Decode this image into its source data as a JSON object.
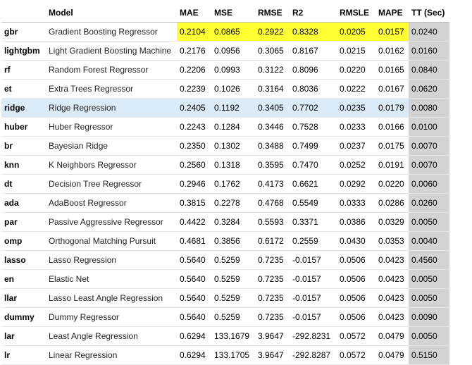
{
  "colors": {
    "best_highlight": "#ffff33",
    "row_highlight": "#dbeaf7",
    "tt_column": "#d3d3d3"
  },
  "columns": [
    "",
    "Model",
    "MAE",
    "MSE",
    "RMSE",
    "R2",
    "RMSLE",
    "MAPE",
    "TT (Sec)"
  ],
  "rows": [
    {
      "id": "gbr",
      "model": "Gradient Boosting Regressor",
      "mae": "0.2104",
      "mse": "0.0865",
      "rmse": "0.2922",
      "r2": "0.8328",
      "rmsle": "0.0205",
      "mape": "0.0157",
      "tt": "0.0240"
    },
    {
      "id": "lightgbm",
      "model": "Light Gradient Boosting Machine",
      "mae": "0.2176",
      "mse": "0.0956",
      "rmse": "0.3065",
      "r2": "0.8167",
      "rmsle": "0.0215",
      "mape": "0.0162",
      "tt": "0.0160"
    },
    {
      "id": "rf",
      "model": "Random Forest Regressor",
      "mae": "0.2206",
      "mse": "0.0993",
      "rmse": "0.3122",
      "r2": "0.8096",
      "rmsle": "0.0220",
      "mape": "0.0165",
      "tt": "0.0840"
    },
    {
      "id": "et",
      "model": "Extra Trees Regressor",
      "mae": "0.2239",
      "mse": "0.1026",
      "rmse": "0.3164",
      "r2": "0.8036",
      "rmsle": "0.0222",
      "mape": "0.0167",
      "tt": "0.0620"
    },
    {
      "id": "ridge",
      "model": "Ridge Regression",
      "mae": "0.2405",
      "mse": "0.1192",
      "rmse": "0.3405",
      "r2": "0.7702",
      "rmsle": "0.0235",
      "mape": "0.0179",
      "tt": "0.0080"
    },
    {
      "id": "huber",
      "model": "Huber Regressor",
      "mae": "0.2243",
      "mse": "0.1284",
      "rmse": "0.3446",
      "r2": "0.7528",
      "rmsle": "0.0233",
      "mape": "0.0166",
      "tt": "0.0100"
    },
    {
      "id": "br",
      "model": "Bayesian Ridge",
      "mae": "0.2350",
      "mse": "0.1302",
      "rmse": "0.3488",
      "r2": "0.7499",
      "rmsle": "0.0237",
      "mape": "0.0175",
      "tt": "0.0070"
    },
    {
      "id": "knn",
      "model": "K Neighbors Regressor",
      "mae": "0.2560",
      "mse": "0.1318",
      "rmse": "0.3595",
      "r2": "0.7470",
      "rmsle": "0.0252",
      "mape": "0.0191",
      "tt": "0.0070"
    },
    {
      "id": "dt",
      "model": "Decision Tree Regressor",
      "mae": "0.2946",
      "mse": "0.1762",
      "rmse": "0.4173",
      "r2": "0.6621",
      "rmsle": "0.0292",
      "mape": "0.0220",
      "tt": "0.0060"
    },
    {
      "id": "ada",
      "model": "AdaBoost Regressor",
      "mae": "0.3815",
      "mse": "0.2278",
      "rmse": "0.4768",
      "r2": "0.5549",
      "rmsle": "0.0333",
      "mape": "0.0286",
      "tt": "0.0260"
    },
    {
      "id": "par",
      "model": "Passive Aggressive Regressor",
      "mae": "0.4422",
      "mse": "0.3284",
      "rmse": "0.5593",
      "r2": "0.3371",
      "rmsle": "0.0386",
      "mape": "0.0329",
      "tt": "0.0050"
    },
    {
      "id": "omp",
      "model": "Orthogonal Matching Pursuit",
      "mae": "0.4681",
      "mse": "0.3856",
      "rmse": "0.6172",
      "r2": "0.2559",
      "rmsle": "0.0430",
      "mape": "0.0353",
      "tt": "0.0040"
    },
    {
      "id": "lasso",
      "model": "Lasso Regression",
      "mae": "0.5640",
      "mse": "0.5259",
      "rmse": "0.7235",
      "r2": "-0.0157",
      "rmsle": "0.0506",
      "mape": "0.0423",
      "tt": "0.4560"
    },
    {
      "id": "en",
      "model": "Elastic Net",
      "mae": "0.5640",
      "mse": "0.5259",
      "rmse": "0.7235",
      "r2": "-0.0157",
      "rmsle": "0.0506",
      "mape": "0.0423",
      "tt": "0.0050"
    },
    {
      "id": "llar",
      "model": "Lasso Least Angle Regression",
      "mae": "0.5640",
      "mse": "0.5259",
      "rmse": "0.7235",
      "r2": "-0.0157",
      "rmsle": "0.0506",
      "mape": "0.0423",
      "tt": "0.0050"
    },
    {
      "id": "dummy",
      "model": "Dummy Regressor",
      "mae": "0.5640",
      "mse": "0.5259",
      "rmse": "0.7235",
      "r2": "-0.0157",
      "rmsle": "0.0506",
      "mape": "0.0423",
      "tt": "0.0090"
    },
    {
      "id": "lar",
      "model": "Least Angle Regression",
      "mae": "0.6294",
      "mse": "133.1679",
      "rmse": "3.9647",
      "r2": "-292.8231",
      "rmsle": "0.0572",
      "mape": "0.0479",
      "tt": "0.0050"
    },
    {
      "id": "lr",
      "model": "Linear Regression",
      "mae": "0.6294",
      "mse": "133.1705",
      "rmse": "3.9647",
      "r2": "-292.8287",
      "rmsle": "0.0572",
      "mape": "0.0479",
      "tt": "0.5150"
    }
  ],
  "highlighted_row_index": 4,
  "best_row_index": 0
}
